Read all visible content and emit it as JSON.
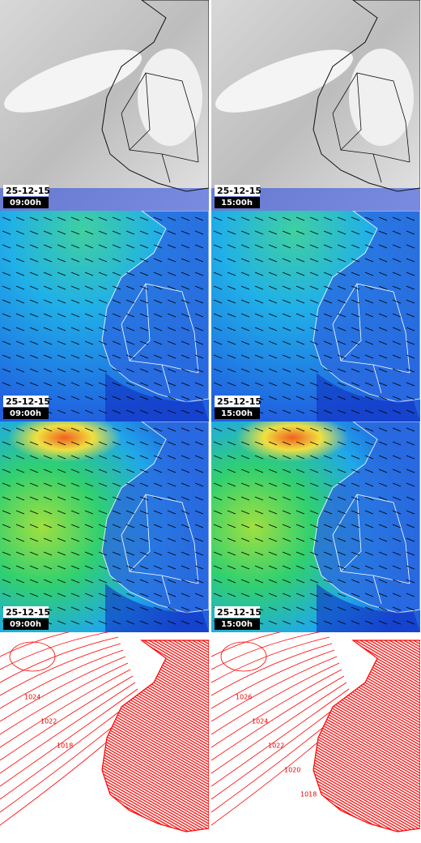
{
  "rows": [
    {
      "left": {
        "date": "25-12-15",
        "time": "09:00h"
      },
      "right": {
        "date": "25-12-15",
        "time": "15:00h"
      }
    },
    {
      "left": {
        "date": "25-12-15",
        "time": "09:00h"
      },
      "right": {
        "date": "25-12-15",
        "time": "15:00h"
      }
    },
    {
      "left": {
        "date": "25-12-15",
        "time": "09:00h"
      },
      "right": {
        "date": "25-12-15",
        "time": "15:00h"
      }
    }
  ],
  "pressure": {
    "left": {
      "labels": [
        "1024",
        "1022",
        "1018"
      ]
    },
    "right": {
      "labels": [
        "1026",
        "1024",
        "1022",
        "1020",
        "1018"
      ]
    }
  }
}
